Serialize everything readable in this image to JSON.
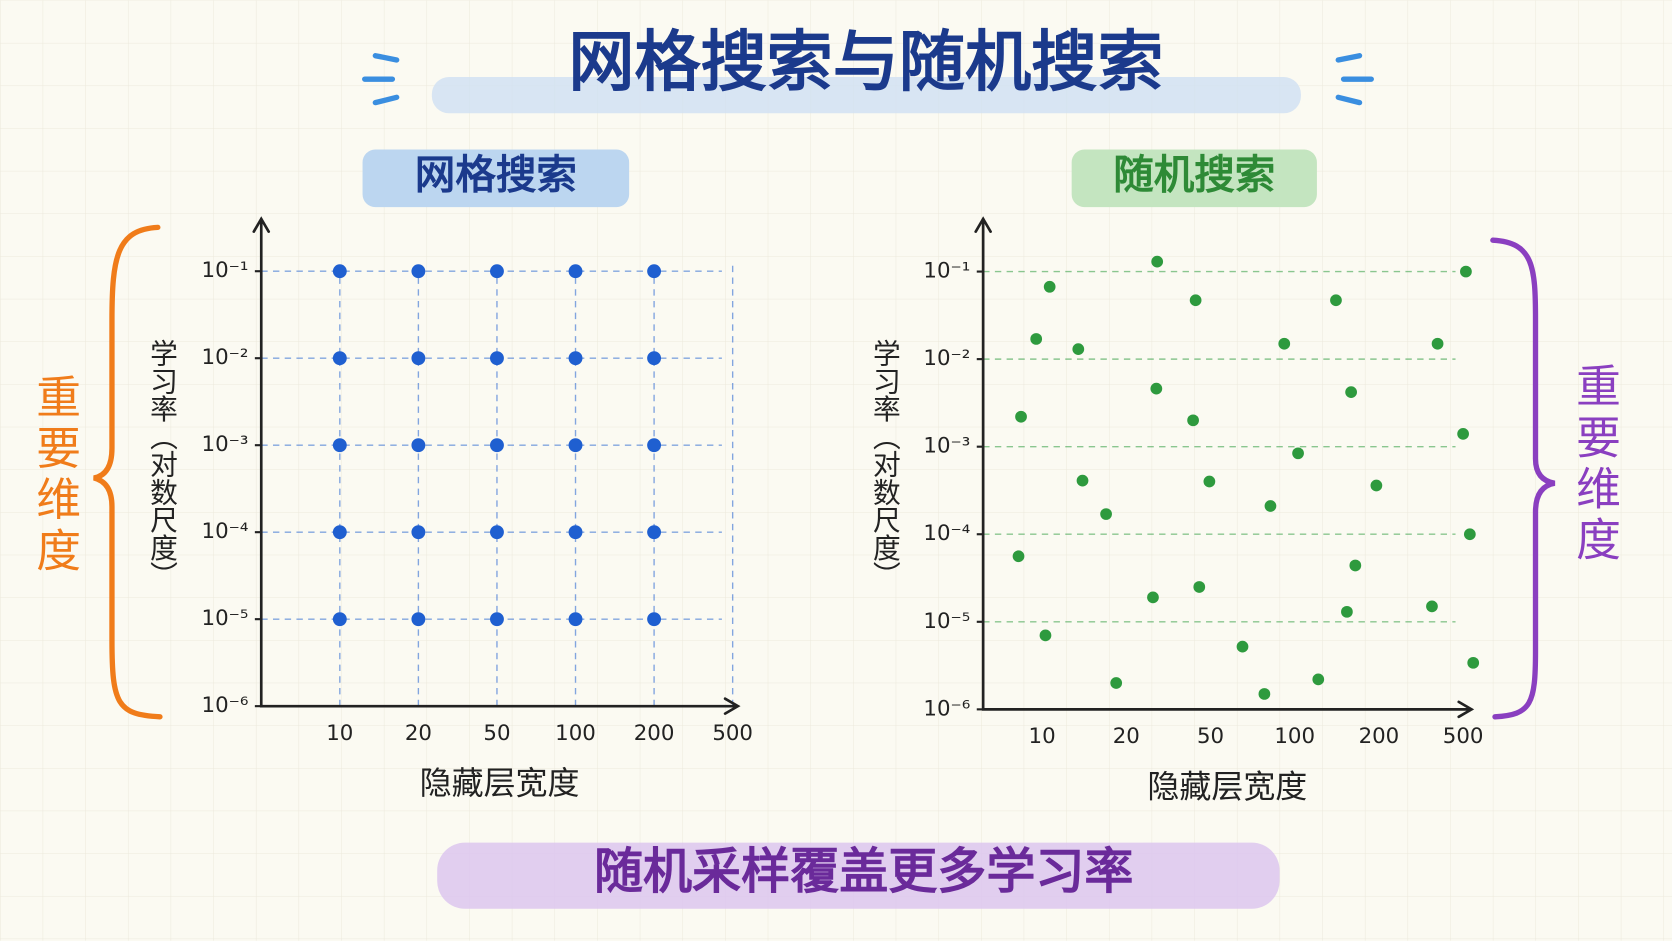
{
  "title": "网格搜索与随机搜索",
  "footer": "随机采样覆盖更多学习率",
  "side_label_left": "重要维度",
  "side_label_right": "重要维度",
  "chart_data": [
    {
      "type": "scatter",
      "title": "网格搜索",
      "x_label": "隐藏层宽度",
      "y_label": "学习率（对数尺度）",
      "color": "#1f5fd0",
      "title_bg": "#bcd6f0",
      "title_color": "#1b3a8c",
      "grid": [
        "x",
        "y"
      ],
      "xlim": [
        0,
        520
      ],
      "xticks": [
        10,
        20,
        50,
        100,
        200,
        500
      ],
      "log_y": true,
      "ylim": [
        1e-06,
        0.4
      ],
      "yticks": [
        {
          "value": 0.1,
          "label": "10⁻¹"
        },
        {
          "value": 0.01,
          "label": "10⁻²"
        },
        {
          "value": 0.001,
          "label": "10⁻³"
        },
        {
          "value": 0.0001,
          "label": "10⁻⁴"
        },
        {
          "value": 1e-05,
          "label": "10⁻⁵"
        },
        {
          "value": 1e-06,
          "label": "10⁻⁶"
        }
      ],
      "x": [
        10,
        20,
        50,
        100,
        200,
        10,
        20,
        50,
        100,
        200,
        10,
        20,
        50,
        100,
        200,
        10,
        20,
        50,
        100,
        200,
        10,
        20,
        50,
        100,
        200
      ],
      "values": [
        0.1,
        0.1,
        0.1,
        0.1,
        0.1,
        0.01,
        0.01,
        0.01,
        0.01,
        0.01,
        0.001,
        0.001,
        0.001,
        0.001,
        0.001,
        0.0001,
        0.0001,
        0.0001,
        0.0001,
        0.0001,
        1e-05,
        1e-05,
        1e-05,
        1e-05,
        1e-05
      ]
    },
    {
      "type": "scatter",
      "title": "随机搜索",
      "x_label": "隐藏层宽度",
      "y_label": "学习率（对数尺度）",
      "color": "#2e9a3e",
      "title_bg": "#c4e5c0",
      "title_color": "#2e8a36",
      "grid": [
        "y"
      ],
      "xlim": [
        3,
        530
      ],
      "xticks": [
        10,
        20,
        50,
        100,
        200,
        500
      ],
      "log_y": true,
      "ylim": [
        1e-06,
        0.4
      ],
      "yticks": [
        {
          "value": 0.1,
          "label": "10⁻¹"
        },
        {
          "value": 0.01,
          "label": "10⁻²"
        },
        {
          "value": 0.001,
          "label": "10⁻³"
        },
        {
          "value": 0.0001,
          "label": "10⁻⁴"
        },
        {
          "value": 1e-05,
          "label": "10⁻⁵"
        },
        {
          "value": 1e-06,
          "label": "10⁻⁶"
        }
      ],
      "x": [
        31,
        510,
        10.9,
        44.7,
        149,
        9.3,
        14.3,
        93.8,
        409,
        30.7,
        167,
        7.5,
        43.8,
        500,
        104,
        14.8,
        49.6,
        197,
        85.6,
        17.6,
        524,
        7.2,
        172,
        46,
        29.5,
        389,
        162,
        10.4,
        69,
        536,
        128,
        18.8,
        82
      ],
      "values": [
        0.13,
        0.1,
        0.067,
        0.047,
        0.047,
        0.017,
        0.013,
        0.015,
        0.015,
        0.0046,
        0.0042,
        0.0022,
        0.002,
        0.0014,
        0.00084,
        0.00041,
        0.0004,
        0.00036,
        0.00021,
        0.00017,
        0.0001,
        5.6e-05,
        4.4e-05,
        2.5e-05,
        1.9e-05,
        1.5e-05,
        1.3e-05,
        7e-06,
        5.2e-06,
        3.4e-06,
        2.2e-06,
        2e-06,
        1.5e-06
      ]
    }
  ]
}
